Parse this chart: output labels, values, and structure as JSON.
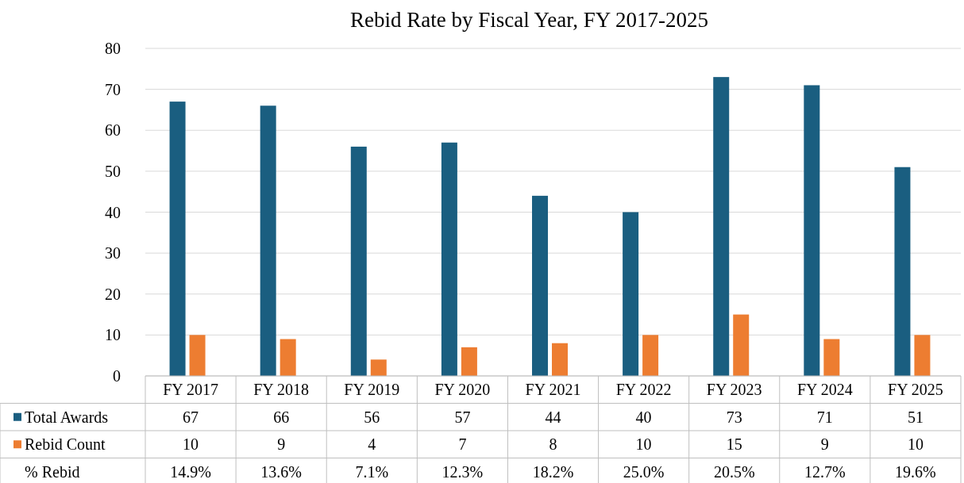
{
  "chart_data": {
    "type": "bar",
    "title": "Rebid Rate by Fiscal Year, FY 2017-2025",
    "categories": [
      "FY 2017",
      "FY 2018",
      "FY 2019",
      "FY 2020",
      "FY 2021",
      "FY 2022",
      "FY 2023",
      "FY 2024",
      "FY 2025"
    ],
    "series": [
      {
        "name": "Total Awards",
        "color": "#1a5e80",
        "values": [
          67,
          66,
          56,
          57,
          44,
          40,
          73,
          71,
          51
        ]
      },
      {
        "name": "Rebid Count",
        "color": "#ed7d31",
        "values": [
          10,
          9,
          4,
          7,
          8,
          10,
          15,
          9,
          10
        ]
      }
    ],
    "annotations": [
      "% Rebid",
      "14.9%",
      "13.6%",
      "7.1%",
      "12.3%",
      "18.2%",
      "25.0%",
      "20.5%",
      "12.7%",
      "19.6%"
    ],
    "ylim": [
      0,
      80
    ],
    "yticks": [
      0,
      10,
      20,
      30,
      40,
      50,
      60,
      70,
      80
    ],
    "grid": "y",
    "legend": "bottom",
    "data_labels": true
  }
}
